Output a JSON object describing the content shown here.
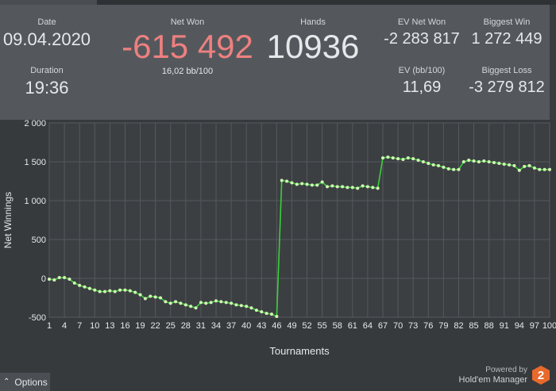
{
  "stats": {
    "date": {
      "label": "Date",
      "value": "09.04.2020"
    },
    "duration": {
      "label": "Duration",
      "value": "19:36"
    },
    "net_won": {
      "label": "Net Won",
      "value": "-615 492",
      "sub": "16,02 bb/100"
    },
    "hands": {
      "label": "Hands",
      "value": "10936"
    },
    "ev_net_won": {
      "label": "EV Net Won",
      "value": "-2 283 817"
    },
    "ev_bb100": {
      "label": "EV (bb/100)",
      "value": "11,69"
    },
    "biggest_win": {
      "label": "Biggest Win",
      "value": "1 272 449"
    },
    "biggest_loss": {
      "label": "Biggest Loss",
      "value": "-3 279 812"
    }
  },
  "colors": {
    "net_won": "#ee8080",
    "line": "#39d039",
    "point": "#d2f5b4"
  },
  "footer": {
    "options_label": "Options",
    "powered_by": "Powered by",
    "brand": "Hold'em Manager",
    "logo_text": "2"
  },
  "chart_data": {
    "type": "line",
    "title": "",
    "xlabel": "Tournaments",
    "ylabel": "Net Winnings",
    "ylim": [
      -500,
      2000
    ],
    "xlim": [
      1,
      100
    ],
    "yticks": [
      -500,
      0,
      500,
      1000,
      1500,
      2000
    ],
    "ytick_labels": [
      "-500",
      "0",
      "500",
      "1 000",
      "1 500",
      "2 000"
    ],
    "xticks": [
      1,
      4,
      7,
      10,
      13,
      16,
      19,
      22,
      25,
      28,
      31,
      34,
      37,
      40,
      43,
      46,
      49,
      52,
      55,
      58,
      61,
      64,
      67,
      70,
      73,
      76,
      79,
      82,
      85,
      88,
      91,
      94,
      97,
      100
    ],
    "grid": true,
    "legend": "none",
    "series": [
      {
        "values": [
          -10,
          -20,
          10,
          10,
          -10,
          -60,
          -90,
          -110,
          -130,
          -150,
          -170,
          -170,
          -160,
          -170,
          -150,
          -150,
          -160,
          -180,
          -210,
          -260,
          -230,
          -240,
          -250,
          -300,
          -320,
          -300,
          -320,
          -340,
          -360,
          -380,
          -310,
          -320,
          -310,
          -290,
          -300,
          -310,
          -320,
          -340,
          -350,
          -360,
          -380,
          -410,
          -430,
          -450,
          -460,
          -490,
          1260,
          1250,
          1230,
          1210,
          1220,
          1210,
          1200,
          1200,
          1240,
          1180,
          1190,
          1180,
          1180,
          1170,
          1170,
          1160,
          1190,
          1180,
          1170,
          1160,
          1550,
          1560,
          1550,
          1540,
          1530,
          1550,
          1540,
          1520,
          1500,
          1480,
          1460,
          1450,
          1430,
          1410,
          1400,
          1400,
          1500,
          1520,
          1510,
          1500,
          1510,
          1500,
          1490,
          1480,
          1470,
          1460,
          1450,
          1390,
          1440,
          1450,
          1420,
          1400,
          1400,
          1400
        ]
      }
    ]
  }
}
